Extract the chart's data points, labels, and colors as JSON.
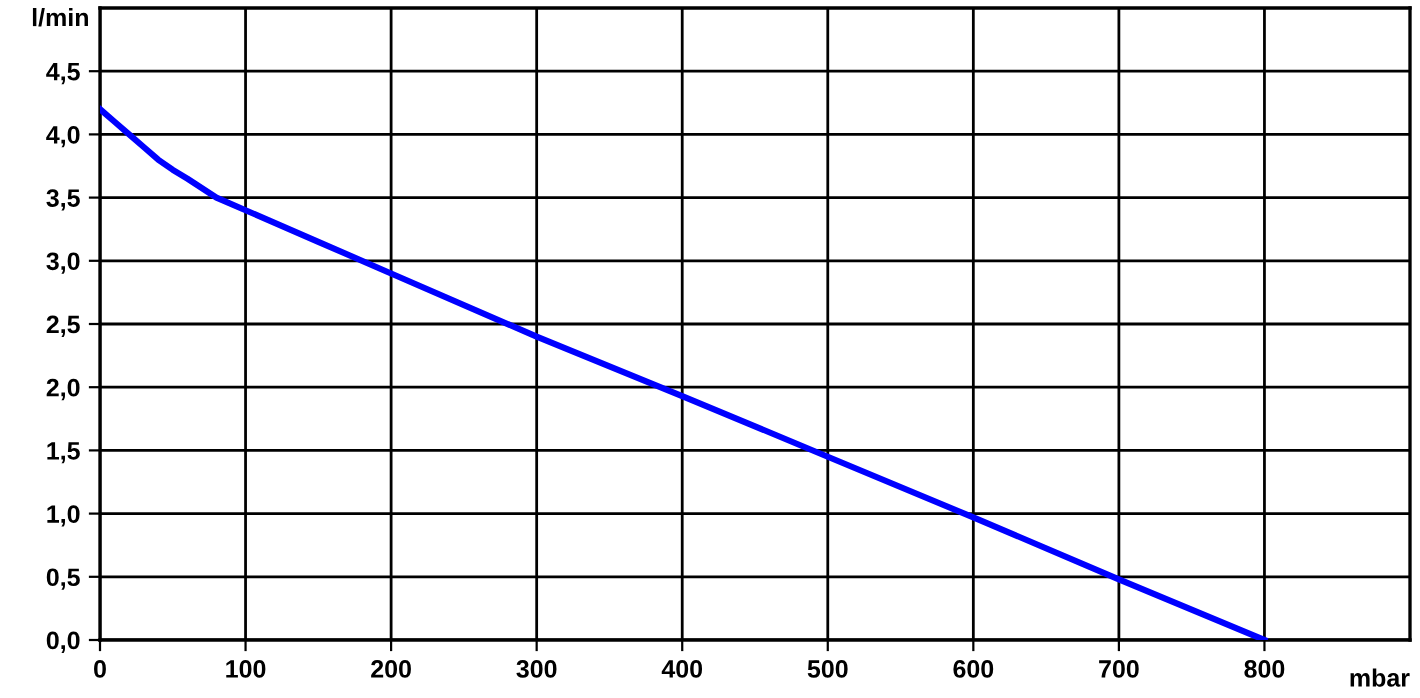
{
  "chart_data": {
    "type": "line",
    "xlabel": "mbar",
    "ylabel": "l/min",
    "xlim": [
      0,
      900
    ],
    "ylim": [
      0,
      5
    ],
    "xticks": [
      0,
      100,
      200,
      300,
      400,
      500,
      600,
      700,
      800
    ],
    "yticks": [
      {
        "value": 0,
        "label": "0,0"
      },
      {
        "value": 0.5,
        "label": "0,5"
      },
      {
        "value": 1,
        "label": "1,0"
      },
      {
        "value": 1.5,
        "label": "1,5"
      },
      {
        "value": 2,
        "label": "2,0"
      },
      {
        "value": 2.5,
        "label": "2,5"
      },
      {
        "value": 3,
        "label": "3,0"
      },
      {
        "value": 3.5,
        "label": "3,5"
      },
      {
        "value": 4,
        "label": "4,0"
      },
      {
        "value": 4.5,
        "label": "4,5"
      }
    ],
    "grid": true,
    "marker": "none",
    "line_style": "solid",
    "series": [
      {
        "color": "#0000ff",
        "x": [
          0,
          10,
          20,
          30,
          40,
          50,
          60,
          80,
          100,
          150,
          200,
          300,
          400,
          500,
          600,
          700,
          800
        ],
        "values": [
          4.2,
          4.1,
          4.0,
          3.9,
          3.8,
          3.72,
          3.65,
          3.5,
          3.4,
          3.15,
          2.9,
          2.4,
          1.93,
          1.45,
          0.97,
          0.48,
          0
        ]
      }
    ]
  }
}
